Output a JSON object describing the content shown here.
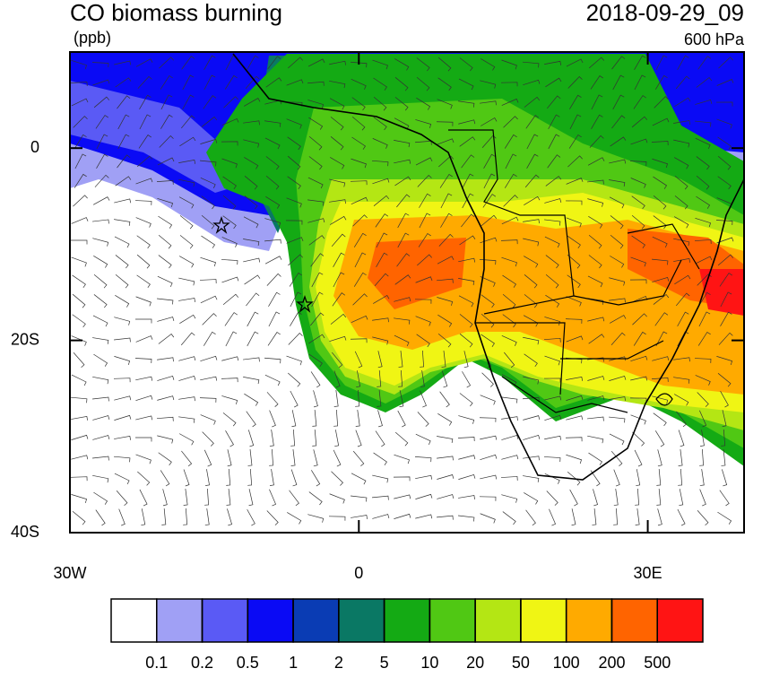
{
  "header": {
    "title": "CO biomass burning",
    "units": "(ppb)",
    "time": "2018-09-29_09",
    "level": "600 hPa"
  },
  "map": {
    "xlim": [
      -30,
      40
    ],
    "ylim": [
      -40,
      10
    ],
    "lat_ticks": [
      0,
      {
        "value": -20,
        "label": "20S"
      },
      {
        "value": -40,
        "label": "40S"
      }
    ],
    "lon_ticks": [
      {
        "value": -30,
        "label": "30W"
      },
      0,
      {
        "value": 30,
        "label": "30E"
      }
    ]
  },
  "colorbar": {
    "levels": [
      0.1,
      0.2,
      0.5,
      1,
      2,
      5,
      10,
      20,
      50,
      100,
      200,
      500
    ],
    "colors": [
      "#ffffff",
      "#a0a0f5",
      "#5a5af5",
      "#0a0af5",
      "#0a3cb4",
      "#0a7864",
      "#14aa14",
      "#50c814",
      "#b4e614",
      "#f0f514",
      "#ffaa00",
      "#ff6400",
      "#ff1414"
    ]
  }
}
